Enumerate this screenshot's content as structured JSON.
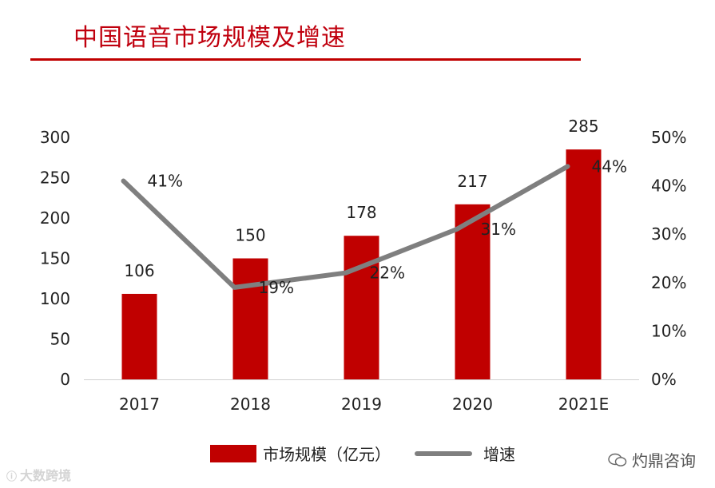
{
  "title": "中国语音市场规模及增速",
  "legend": {
    "bar_label": "市场规模（亿元）",
    "line_label": "增速"
  },
  "watermarks": {
    "left": "大数跨境",
    "left_icon": "ico-logo-icon",
    "right": "灼鼎咨询",
    "right_icon": "wechat-icon"
  },
  "colors": {
    "bar": "#c00000",
    "line": "#7f7f7f",
    "title": "#c0000e"
  },
  "chart_data": {
    "type": "bar",
    "categories": [
      "2017",
      "2018",
      "2019",
      "2020",
      "2021E"
    ],
    "series": [
      {
        "name": "市场规模（亿元）",
        "type": "bar",
        "axis": "left",
        "values": [
          106,
          150,
          178,
          217,
          285
        ],
        "labels": [
          "106",
          "150",
          "178",
          "217",
          "285"
        ]
      },
      {
        "name": "增速",
        "type": "line",
        "axis": "right",
        "values": [
          41,
          19,
          22,
          31,
          44
        ],
        "labels": [
          "41%",
          "19%",
          "22%",
          "31%",
          "44%"
        ]
      }
    ],
    "left_axis": {
      "ylim": [
        0,
        300
      ],
      "ticks": [
        "0",
        "50",
        "100",
        "150",
        "200",
        "250",
        "300"
      ]
    },
    "right_axis": {
      "ylim": [
        0,
        50
      ],
      "ticks": [
        "0%",
        "10%",
        "20%",
        "30%",
        "40%",
        "50%"
      ]
    },
    "grid": false,
    "legend_position": "bottom"
  }
}
